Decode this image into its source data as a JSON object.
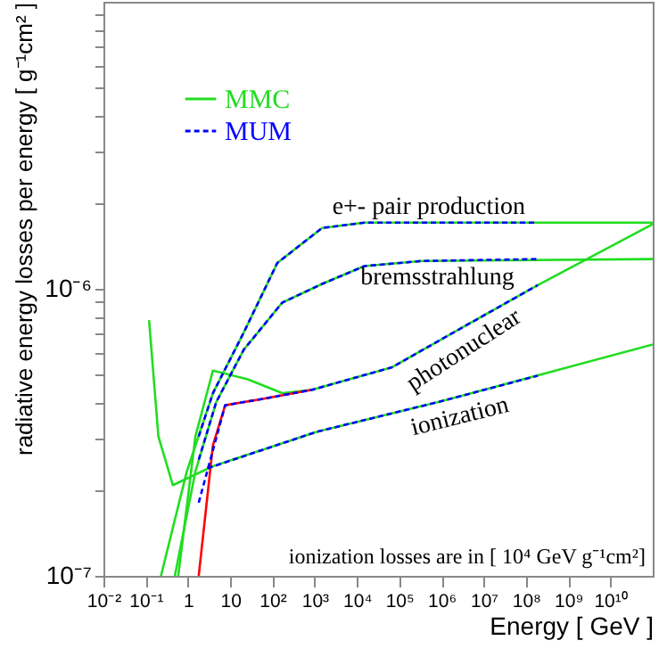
{
  "chart_data": {
    "type": "line",
    "xlabel": "Energy [ GeV ]",
    "ylabel": "radiative energy losses per energy [ g⁻¹cm² ]",
    "log": "xy",
    "xlim": [
      0.01,
      100000000000.0
    ],
    "ylim": [
      1e-07,
      1e-05
    ],
    "xticks": [
      {
        "value": 0.01,
        "label": "10⁻²"
      },
      {
        "value": 0.1,
        "label": "10⁻¹"
      },
      1,
      10,
      {
        "value": 100,
        "label": "10²"
      },
      {
        "value": 1000,
        "label": "10³"
      },
      {
        "value": 10000,
        "label": "10⁴"
      },
      {
        "value": 100000,
        "label": "10⁵"
      },
      {
        "value": 1000000,
        "label": "10⁶"
      },
      {
        "value": 10000000,
        "label": "10⁷"
      },
      {
        "value": 100000000,
        "label": "10⁸"
      },
      {
        "value": 1000000000,
        "label": "10⁹"
      },
      {
        "value": 10000000000,
        "label": "10¹⁰"
      }
    ],
    "yticks": [
      {
        "value": 1e-07,
        "label": "10⁻⁷"
      },
      {
        "value": 2e-07,
        "label": null
      },
      {
        "value": 3e-07,
        "label": null
      },
      {
        "value": 4e-07,
        "label": null
      },
      {
        "value": 5e-07,
        "label": null
      },
      {
        "value": 6e-07,
        "label": null
      },
      {
        "value": 7e-07,
        "label": null
      },
      {
        "value": 8e-07,
        "label": null
      },
      {
        "value": 9e-07,
        "label": null
      },
      {
        "value": 1e-06,
        "label": "10⁻⁶"
      },
      {
        "value": 2e-06,
        "label": null
      },
      {
        "value": 3e-06,
        "label": null
      },
      {
        "value": 4e-06,
        "label": null
      },
      {
        "value": 5e-06,
        "label": null
      },
      {
        "value": 6e-06,
        "label": null
      },
      {
        "value": 7e-06,
        "label": null
      },
      {
        "value": 8e-06,
        "label": null
      },
      {
        "value": 9e-06,
        "label": null
      }
    ],
    "grid": false,
    "legend": "top left",
    "series": [
      {
        "name": "MMC",
        "color": "#22dd22",
        "line_style": "solid",
        "x": [
          0.23,
          0.94,
          3.9,
          21,
          130,
          1500,
          15000,
          100000000000.0
        ],
        "values": [
          1e-07,
          2.31e-07,
          4.33e-07,
          7.05e-07,
          1.23e-06,
          1.63e-06,
          1.7e-06,
          1.7e-06
        ]
      },
      {
        "color": "#22dd22",
        "line_style": "solid",
        "x": [
          0.49,
          1.5,
          4.7,
          21,
          170,
          1500,
          15000,
          340000,
          100000000000.0
        ],
        "values": [
          1e-07,
          2.31e-07,
          4.04e-07,
          6.14e-07,
          8.95e-07,
          1.04e-06,
          1.2e-06,
          1.25e-06,
          1.27e-06
        ]
      },
      {
        "color": "#22dd22",
        "line_style": "solid",
        "x": [
          0.59,
          1.5,
          3.9,
          26,
          170,
          870,
          68000,
          880000,
          190000000,
          100000000000.0
        ],
        "values": [
          1e-07,
          3.06e-07,
          5.19e-07,
          4.84e-07,
          4.33e-07,
          4.45e-07,
          5.33e-07,
          6.6e-07,
          1.03e-06,
          1.68e-06
        ]
      },
      {
        "color": "#22dd22",
        "line_style": "solid",
        "x": [
          0.12,
          0.2,
          0.44,
          3.9,
          1150,
          880000,
          100000000000.0
        ],
        "values": [
          7.78e-07,
          3.06e-07,
          2.07e-07,
          2.41e-07,
          3.18e-07,
          4.04e-07,
          6.4e-07
        ]
      },
      {
        "color": "#ff0000",
        "line_style": "solid",
        "x": [
          1.8,
          3.9,
          7.6,
          67,
          870
        ],
        "values": [
          1e-07,
          2.85e-07,
          3.93e-07,
          4.15e-07,
          4.45e-07
        ]
      },
      {
        "name": "MUM",
        "color": "#0000ff",
        "line_style": "dashed",
        "x": [
          1.8,
          3.9,
          21,
          130,
          1500,
          15000,
          190000000
        ],
        "values": [
          3.06e-07,
          4.33e-07,
          7.05e-07,
          1.23e-06,
          1.63e-06,
          1.7e-06,
          1.7e-06
        ]
      },
      {
        "color": "#0000ff",
        "line_style": "dashed",
        "x": [
          1.8,
          4.7,
          21,
          170,
          1500,
          15000,
          340000,
          190000000
        ],
        "values": [
          2.54e-07,
          4.04e-07,
          6.14e-07,
          8.95e-07,
          1.04e-06,
          1.2e-06,
          1.25e-06,
          1.27e-06
        ]
      },
      {
        "color": "#0000ff",
        "line_style": "dashed",
        "x": [
          1.8,
          7.6,
          67,
          870,
          68000,
          880000,
          190000000
        ],
        "values": [
          1.8e-07,
          3.93e-07,
          4.15e-07,
          4.45e-07,
          5.33e-07,
          6.6e-07,
          1.03e-06
        ]
      },
      {
        "color": "#0000ff",
        "line_style": "dashed",
        "x": [
          2.9,
          1150,
          880000,
          190000000
        ],
        "values": [
          2.37e-07,
          3.18e-07,
          4.04e-07,
          4.98e-07
        ]
      }
    ],
    "annotations": [
      {
        "text": "e+- pair production",
        "x": 500000,
        "y": 1.7e-06
      },
      {
        "text": "bremsstrahlung",
        "x": 800000,
        "y": 1.27e-06
      },
      {
        "text": "photonuclear",
        "x": 2000000,
        "y": 6.9e-07
      },
      {
        "text": "ionization",
        "x": 2000000,
        "y": 4.3e-07
      },
      "ionization losses are in [ 10⁴ GeV g⁻¹cm²]"
    ]
  }
}
